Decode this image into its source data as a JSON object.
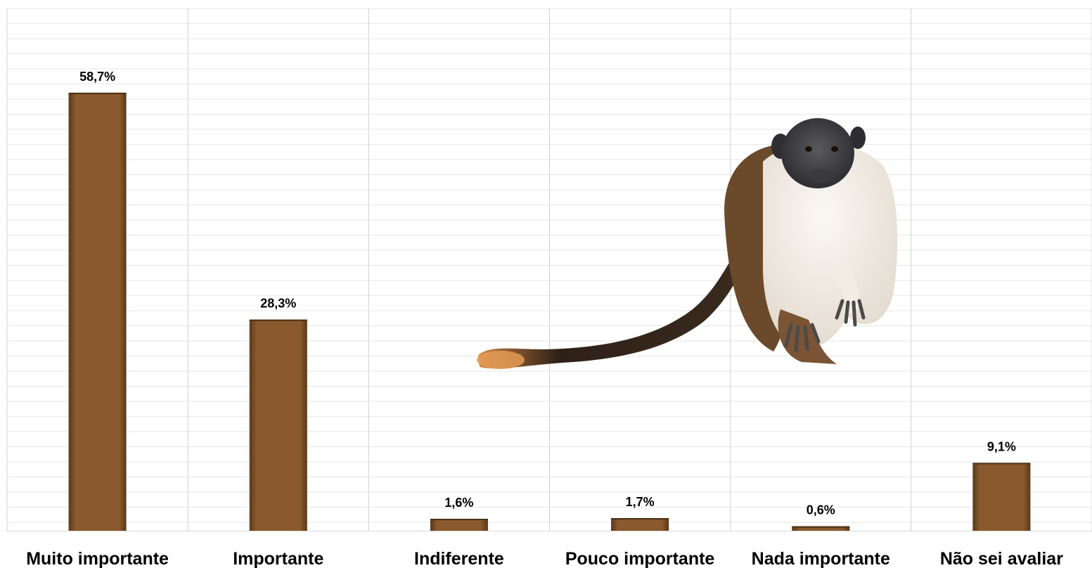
{
  "chart_data": {
    "type": "bar",
    "categories": [
      "Muito importante",
      "Importante",
      "Indiferente",
      "Pouco importante",
      "Nada importante",
      "Não sei avaliar"
    ],
    "values": [
      58.7,
      28.3,
      1.6,
      1.7,
      0.6,
      9.1
    ],
    "data_labels": [
      "58,7%",
      "28,3%",
      "1,6%",
      "1,7%",
      "0,6%",
      "9,1%"
    ],
    "title": "",
    "xlabel": "",
    "ylabel": "",
    "ylim": [
      0,
      70
    ],
    "grid": true,
    "legend": "none",
    "colors": {
      "bar": "#8a5a2e",
      "bar_dark": "#4a2e12",
      "grid": "#e6e6e6",
      "divider": "#d0d0d0",
      "label": "#000000"
    }
  },
  "decoration": {
    "image": "pied-tamarin-monkey-photo"
  }
}
